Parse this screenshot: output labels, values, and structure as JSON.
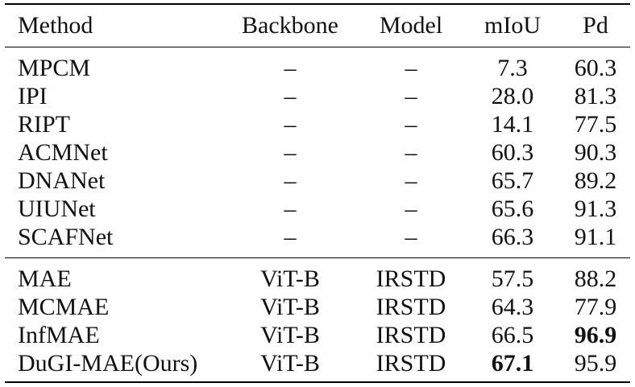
{
  "table": {
    "headers": {
      "method": "Method",
      "backbone": "Backbone",
      "model": "Model",
      "miou": "mIoU",
      "pd": "Pd"
    },
    "group1": [
      {
        "method": "MPCM",
        "backbone": "–",
        "model": "–",
        "miou": "7.3",
        "pd": "60.3"
      },
      {
        "method": "IPI",
        "backbone": "–",
        "model": "–",
        "miou": "28.0",
        "pd": "81.3"
      },
      {
        "method": "RIPT",
        "backbone": "–",
        "model": "–",
        "miou": "14.1",
        "pd": "77.5"
      },
      {
        "method": "ACMNet",
        "backbone": "–",
        "model": "–",
        "miou": "60.3",
        "pd": "90.3"
      },
      {
        "method": "DNANet",
        "backbone": "–",
        "model": "–",
        "miou": "65.7",
        "pd": "89.2"
      },
      {
        "method": "UIUNet",
        "backbone": "–",
        "model": "–",
        "miou": "65.6",
        "pd": "91.3"
      },
      {
        "method": "SCAFNet",
        "backbone": "–",
        "model": "–",
        "miou": "66.3",
        "pd": "91.1"
      }
    ],
    "group2": [
      {
        "method": "MAE",
        "backbone": "ViT-B",
        "model": "IRSTD",
        "miou": "57.5",
        "pd": "88.2"
      },
      {
        "method": "MCMAE",
        "backbone": "ViT-B",
        "model": "IRSTD",
        "miou": "64.3",
        "pd": "77.9"
      },
      {
        "method": "InfMAE",
        "backbone": "ViT-B",
        "model": "IRSTD",
        "miou": "66.5",
        "pd": "96.9"
      },
      {
        "method": "DuGI-MAE(Ours)",
        "backbone": "ViT-B",
        "model": "IRSTD",
        "miou": "67.1",
        "pd": "95.9"
      }
    ],
    "best": {
      "miou_row": "DuGI-MAE(Ours)",
      "pd_row": "InfMAE"
    }
  }
}
